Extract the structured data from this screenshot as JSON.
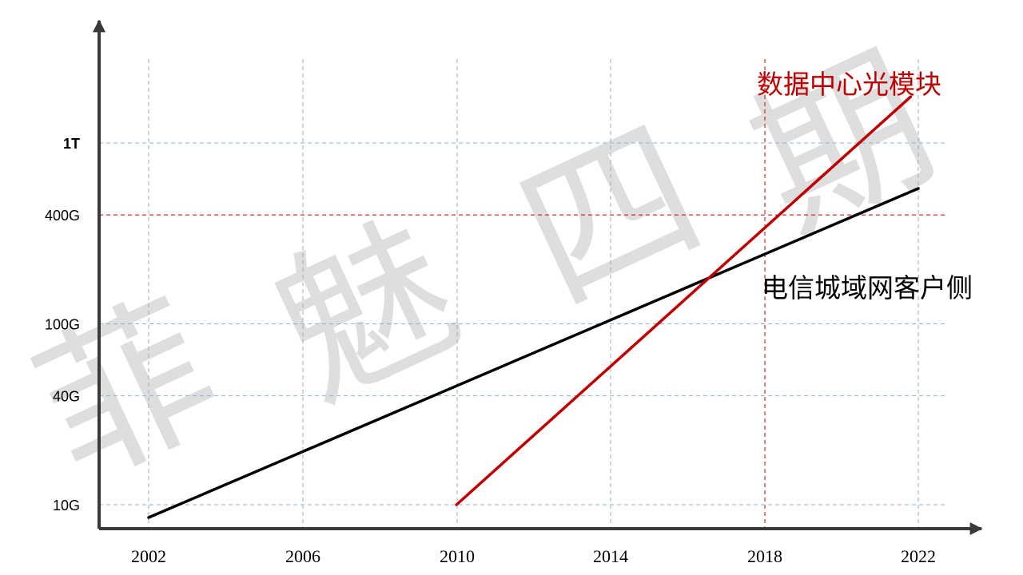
{
  "chart_data": {
    "type": "line",
    "x_ticks": [
      "2002",
      "2006",
      "2010",
      "2014",
      "2018",
      "2022"
    ],
    "y_ticks": [
      {
        "label": "10G",
        "value": 10
      },
      {
        "label": "40G",
        "value": 40
      },
      {
        "label": "100G",
        "value": 100
      },
      {
        "label": "400G",
        "value": 400
      },
      {
        "label": "1T",
        "value": 1000
      }
    ],
    "y_scale": "log",
    "xlim": [
      2002,
      2022
    ],
    "series": [
      {
        "name": "电信城域网客户侧",
        "color": "#000000",
        "points": [
          {
            "x": 2002,
            "y": 8.5
          },
          {
            "x": 2022,
            "y": 560
          }
        ]
      },
      {
        "name": "数据中心光模块",
        "color": "#c00000",
        "points": [
          {
            "x": 2010,
            "y": 10
          },
          {
            "x": 2021.8,
            "y": 1800
          }
        ]
      }
    ],
    "grid": true,
    "highlight_lines": [
      {
        "axis": "y",
        "value": 400,
        "color": "#c00000"
      },
      {
        "axis": "x",
        "value": 2018,
        "color": "#c00000"
      }
    ]
  },
  "watermark": [
    "菲",
    "魅",
    "四",
    "期"
  ]
}
